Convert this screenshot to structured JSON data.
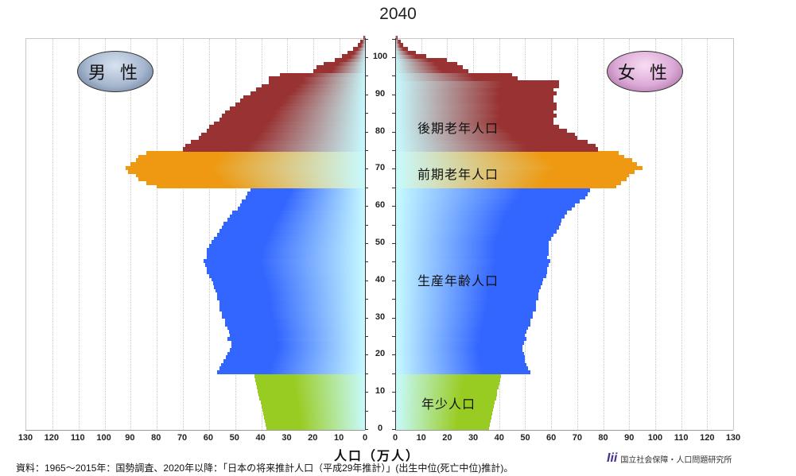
{
  "title": "2040",
  "labels": {
    "male": "男 性",
    "female": "女 性",
    "late_elderly": "後期老年人口",
    "early_elderly": "前期老年人口",
    "working_age": "生産年齢人口",
    "youth": "年少人口"
  },
  "xlabel": "人口（万人）",
  "source": "資料：1965～2015年：国勢調査、2020年以降：「日本の将来推計人口（平成29年推計）」(出生中位(死亡中位)推計)。",
  "logo": {
    "mark": "Iii",
    "text": "国立社会保障・人口問題研究所"
  },
  "colors": {
    "youth": "#99cc22",
    "working_age": "#3366ff",
    "early_elderly": "#ee9911",
    "late_elderly": "#993333",
    "center": "#c8fbff"
  },
  "chart_data": {
    "type": "bar",
    "orientation": "horizontal-population-pyramid",
    "title": "2040",
    "xlabel": "人口（万人）",
    "ylabel": "年齢",
    "x_ticks_left": [
      130,
      120,
      110,
      100,
      90,
      80,
      70,
      60,
      50,
      40,
      30,
      20,
      10,
      0
    ],
    "x_ticks_right": [
      0,
      10,
      20,
      30,
      40,
      50,
      60,
      70,
      80,
      90,
      100,
      110,
      120,
      130
    ],
    "y_ticks": [
      0,
      10,
      20,
      30,
      40,
      50,
      60,
      70,
      80,
      90,
      100
    ],
    "xlim": [
      0,
      130
    ],
    "ylim": [
      0,
      105
    ],
    "segments": [
      {
        "name": "年少人口",
        "ages": [
          0,
          14
        ]
      },
      {
        "name": "生産年齢人口",
        "ages": [
          15,
          64
        ]
      },
      {
        "name": "前期老年人口",
        "ages": [
          65,
          74
        ]
      },
      {
        "name": "後期老年人口",
        "ages": [
          75,
          105
        ]
      }
    ],
    "ages": [
      0,
      1,
      2,
      3,
      4,
      5,
      6,
      7,
      8,
      9,
      10,
      11,
      12,
      13,
      14,
      15,
      16,
      17,
      18,
      19,
      20,
      21,
      22,
      23,
      24,
      25,
      26,
      27,
      28,
      29,
      30,
      31,
      32,
      33,
      34,
      35,
      36,
      37,
      38,
      39,
      40,
      41,
      42,
      43,
      44,
      45,
      46,
      47,
      48,
      49,
      50,
      51,
      52,
      53,
      54,
      55,
      56,
      57,
      58,
      59,
      60,
      61,
      62,
      63,
      64,
      65,
      66,
      67,
      68,
      69,
      70,
      71,
      72,
      73,
      74,
      75,
      76,
      77,
      78,
      79,
      80,
      81,
      82,
      83,
      84,
      85,
      86,
      87,
      88,
      89,
      90,
      91,
      92,
      93,
      94,
      95,
      96,
      97,
      98,
      99,
      100,
      101,
      102,
      103,
      104,
      105
    ],
    "series": [
      {
        "name": "男性",
        "values": [
          38,
          38.3,
          38.7,
          39,
          39.3,
          39.7,
          40,
          40.3,
          40.7,
          41,
          41.3,
          41.7,
          42,
          42.3,
          42.7,
          57,
          56,
          55.5,
          54.5,
          53.5,
          53,
          52,
          51.5,
          51.5,
          53,
          52,
          52.5,
          53,
          54,
          54,
          55,
          55,
          56,
          56,
          56,
          57,
          57,
          57.5,
          58,
          58.5,
          59,
          60,
          61,
          61,
          61.5,
          62,
          61,
          61,
          61,
          60,
          59,
          58,
          57,
          56,
          55,
          54.5,
          53,
          52,
          51,
          49,
          48,
          47.5,
          46,
          45.5,
          44,
          80,
          84,
          87,
          88,
          91,
          92,
          90,
          88,
          87,
          84,
          70,
          69,
          67,
          64,
          63,
          61,
          60,
          58,
          56,
          55,
          54,
          52,
          50,
          48,
          47,
          44,
          42,
          40,
          37,
          37,
          33,
          20,
          19,
          16,
          12,
          9,
          7,
          5,
          3,
          2,
          1,
          0.5
        ]
      },
      {
        "name": "女性",
        "values": [
          36,
          36.3,
          36.7,
          37,
          37.3,
          37.7,
          38,
          38.3,
          38.7,
          39,
          39.3,
          39.7,
          40,
          40.3,
          40.7,
          52,
          51,
          50.5,
          50,
          50,
          49.5,
          49,
          49,
          49.5,
          50.5,
          50,
          50.5,
          51,
          52,
          52,
          53,
          53,
          54,
          54,
          54,
          55,
          55,
          55.5,
          56,
          56.5,
          57,
          58,
          58.5,
          58.5,
          59,
          59.5,
          58.5,
          59,
          59,
          59,
          59,
          60,
          61,
          62,
          63,
          63.5,
          64,
          65,
          66,
          68,
          69,
          71,
          73,
          74,
          75,
          85,
          87,
          89,
          90,
          92,
          95,
          93,
          91,
          88,
          86,
          78,
          77,
          74,
          70,
          69,
          66,
          63,
          61,
          61,
          62,
          61,
          62,
          62,
          61,
          61,
          62,
          61,
          63,
          63,
          47,
          45,
          28,
          26,
          24,
          20,
          12,
          8,
          5,
          3,
          2,
          1
        ]
      }
    ]
  }
}
